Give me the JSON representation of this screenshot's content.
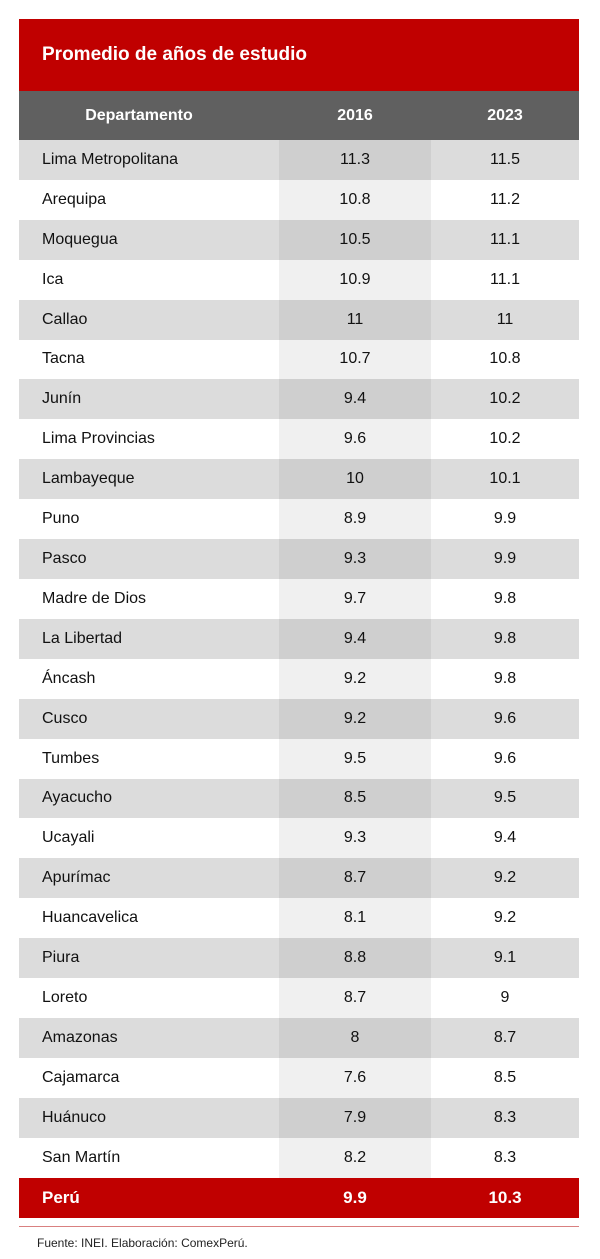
{
  "title": "Promedio de años de estudio",
  "headers": [
    "Departamento",
    "2016",
    "2023"
  ],
  "rows": [
    [
      "Lima Metropolitana",
      "11.3",
      "11.5"
    ],
    [
      "Arequipa",
      "10.8",
      "11.2"
    ],
    [
      "Moquegua",
      "10.5",
      "11.1"
    ],
    [
      "Ica",
      "10.9",
      "11.1"
    ],
    [
      "Callao",
      "11",
      "11"
    ],
    [
      "Tacna",
      "10.7",
      "10.8"
    ],
    [
      "Junín",
      "9.4",
      "10.2"
    ],
    [
      "Lima Provincias",
      "9.6",
      "10.2"
    ],
    [
      "Lambayeque",
      "10",
      "10.1"
    ],
    [
      "Puno",
      "8.9",
      "9.9"
    ],
    [
      "Pasco",
      "9.3",
      "9.9"
    ],
    [
      "Madre de Dios",
      "9.7",
      "9.8"
    ],
    [
      "La Libertad",
      "9.4",
      "9.8"
    ],
    [
      "Áncash",
      "9.2",
      "9.8"
    ],
    [
      "Cusco",
      "9.2",
      "9.6"
    ],
    [
      "Tumbes",
      "9.5",
      "9.6"
    ],
    [
      "Ayacucho",
      "8.5",
      "9.5"
    ],
    [
      "Ucayali",
      "9.3",
      "9.4"
    ],
    [
      "Apurímac",
      "8.7",
      "9.2"
    ],
    [
      "Huancavelica",
      "8.1",
      "9.2"
    ],
    [
      "Piura",
      "8.8",
      "9.1"
    ],
    [
      "Loreto",
      "8.7",
      "9"
    ],
    [
      "Amazonas",
      "8",
      "8.7"
    ],
    [
      "Cajamarca",
      "7.6",
      "8.5"
    ],
    [
      "Huánuco",
      "7.9",
      "8.3"
    ],
    [
      "San Martín",
      "8.2",
      "8.3"
    ]
  ],
  "total": [
    "Perú",
    "9.9",
    "10.3"
  ],
  "footer": "Fuente: INEI. Elaboración: ComexPerú.",
  "colors": {
    "accent": "#c00000",
    "header": "#606060"
  }
}
